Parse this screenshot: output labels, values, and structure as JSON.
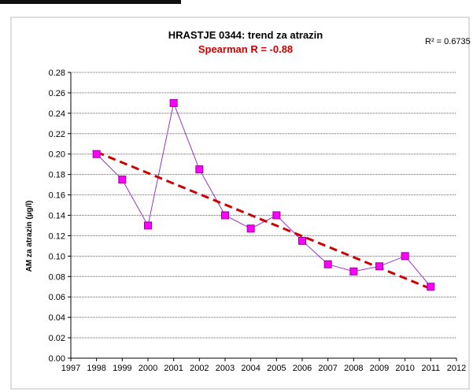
{
  "colors": {
    "trend": "#cc0000",
    "marker_fill": "#ff00ff",
    "marker_stroke": "#990099",
    "line": "#9933cc",
    "grid": "#606060",
    "subtitle": "#cc0000"
  },
  "chart_data": {
    "type": "scatter",
    "title": "HRASTJE 0344: trend za atrazin",
    "subtitle": "Spearman R = -0.88",
    "r_squared_label": "R² = 0.6735",
    "xlabel": "",
    "ylabel": "AM za atrazin (µg/l)",
    "xlim": [
      1997,
      2012
    ],
    "ylim": [
      0,
      0.28
    ],
    "x_ticks": [
      "1997",
      "1998",
      "1999",
      "2000",
      "2001",
      "2002",
      "2003",
      "2004",
      "2005",
      "2006",
      "2007",
      "2008",
      "2009",
      "2010",
      "2011",
      "2012"
    ],
    "y_ticks": [
      "0.00",
      "0.02",
      "0.04",
      "0.06",
      "0.08",
      "0.10",
      "0.12",
      "0.14",
      "0.16",
      "0.18",
      "0.20",
      "0.22",
      "0.24",
      "0.26",
      "0.28"
    ],
    "grid": true,
    "series": [
      {
        "x": [
          1998,
          1999,
          2000,
          2001,
          2002,
          2003,
          2004,
          2005,
          2006,
          2007,
          2008,
          2009,
          2010,
          2011
        ],
        "y": [
          0.2,
          0.175,
          0.13,
          0.25,
          0.185,
          0.14,
          0.127,
          0.14,
          0.115,
          0.092,
          0.085,
          0.09,
          0.1,
          0.07
        ]
      }
    ],
    "trendline": {
      "x": [
        1998,
        2011
      ],
      "y": [
        0.202,
        0.068
      ]
    }
  }
}
